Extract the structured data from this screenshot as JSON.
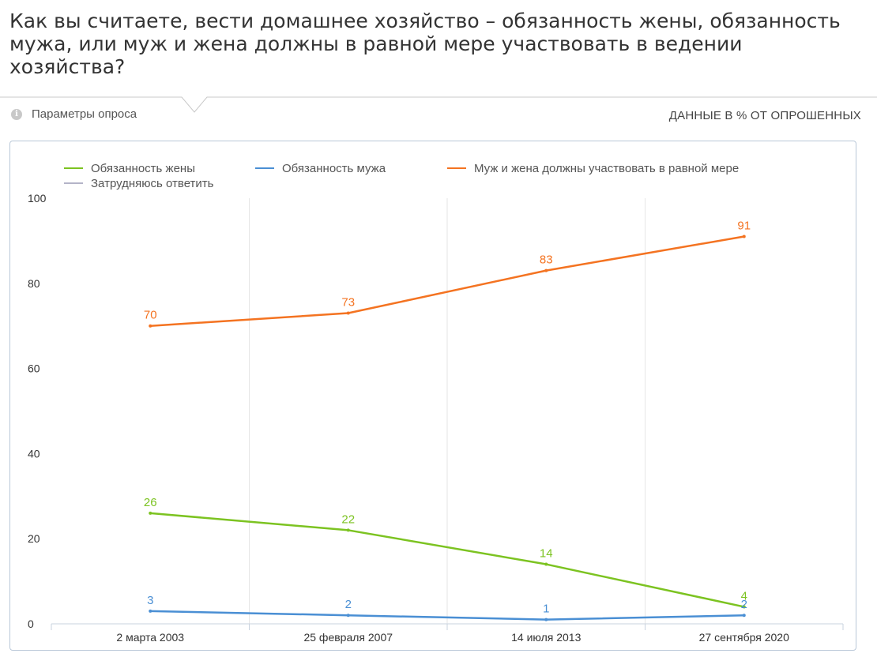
{
  "question": "Как вы считаете, вести домашнее хозяйство – обязанность жены, обязанность мужа, или муж и жена должны в равной мере участвовать в ведении хозяйства?",
  "params_link": "Параметры опроса",
  "data_unit_label": "ДАННЫЕ В % ОТ ОПРОШЕННЫХ",
  "chart_data": {
    "type": "line",
    "categories": [
      "2 марта 2003",
      "25 февраля 2007",
      "14 июля 2013",
      "27 сентября 2020"
    ],
    "ylim": [
      0,
      100
    ],
    "yticks": [
      0,
      20,
      40,
      60,
      80,
      100
    ],
    "grid": "vertical",
    "legend_position": "top",
    "series": [
      {
        "name": "Обязанность жены",
        "color": "#7cc321",
        "values": [
          26,
          22,
          14,
          4
        ]
      },
      {
        "name": "Обязанность мужа",
        "color": "#4a8fd4",
        "values": [
          3,
          2,
          1,
          2
        ]
      },
      {
        "name": "Муж и жена должны участвовать в равной мере",
        "color": "#f47321",
        "values": [
          70,
          73,
          83,
          91
        ]
      },
      {
        "name": "Затрудняюсь ответить",
        "color": "#b4b4c8",
        "values": [
          null,
          null,
          null,
          null
        ]
      }
    ]
  }
}
